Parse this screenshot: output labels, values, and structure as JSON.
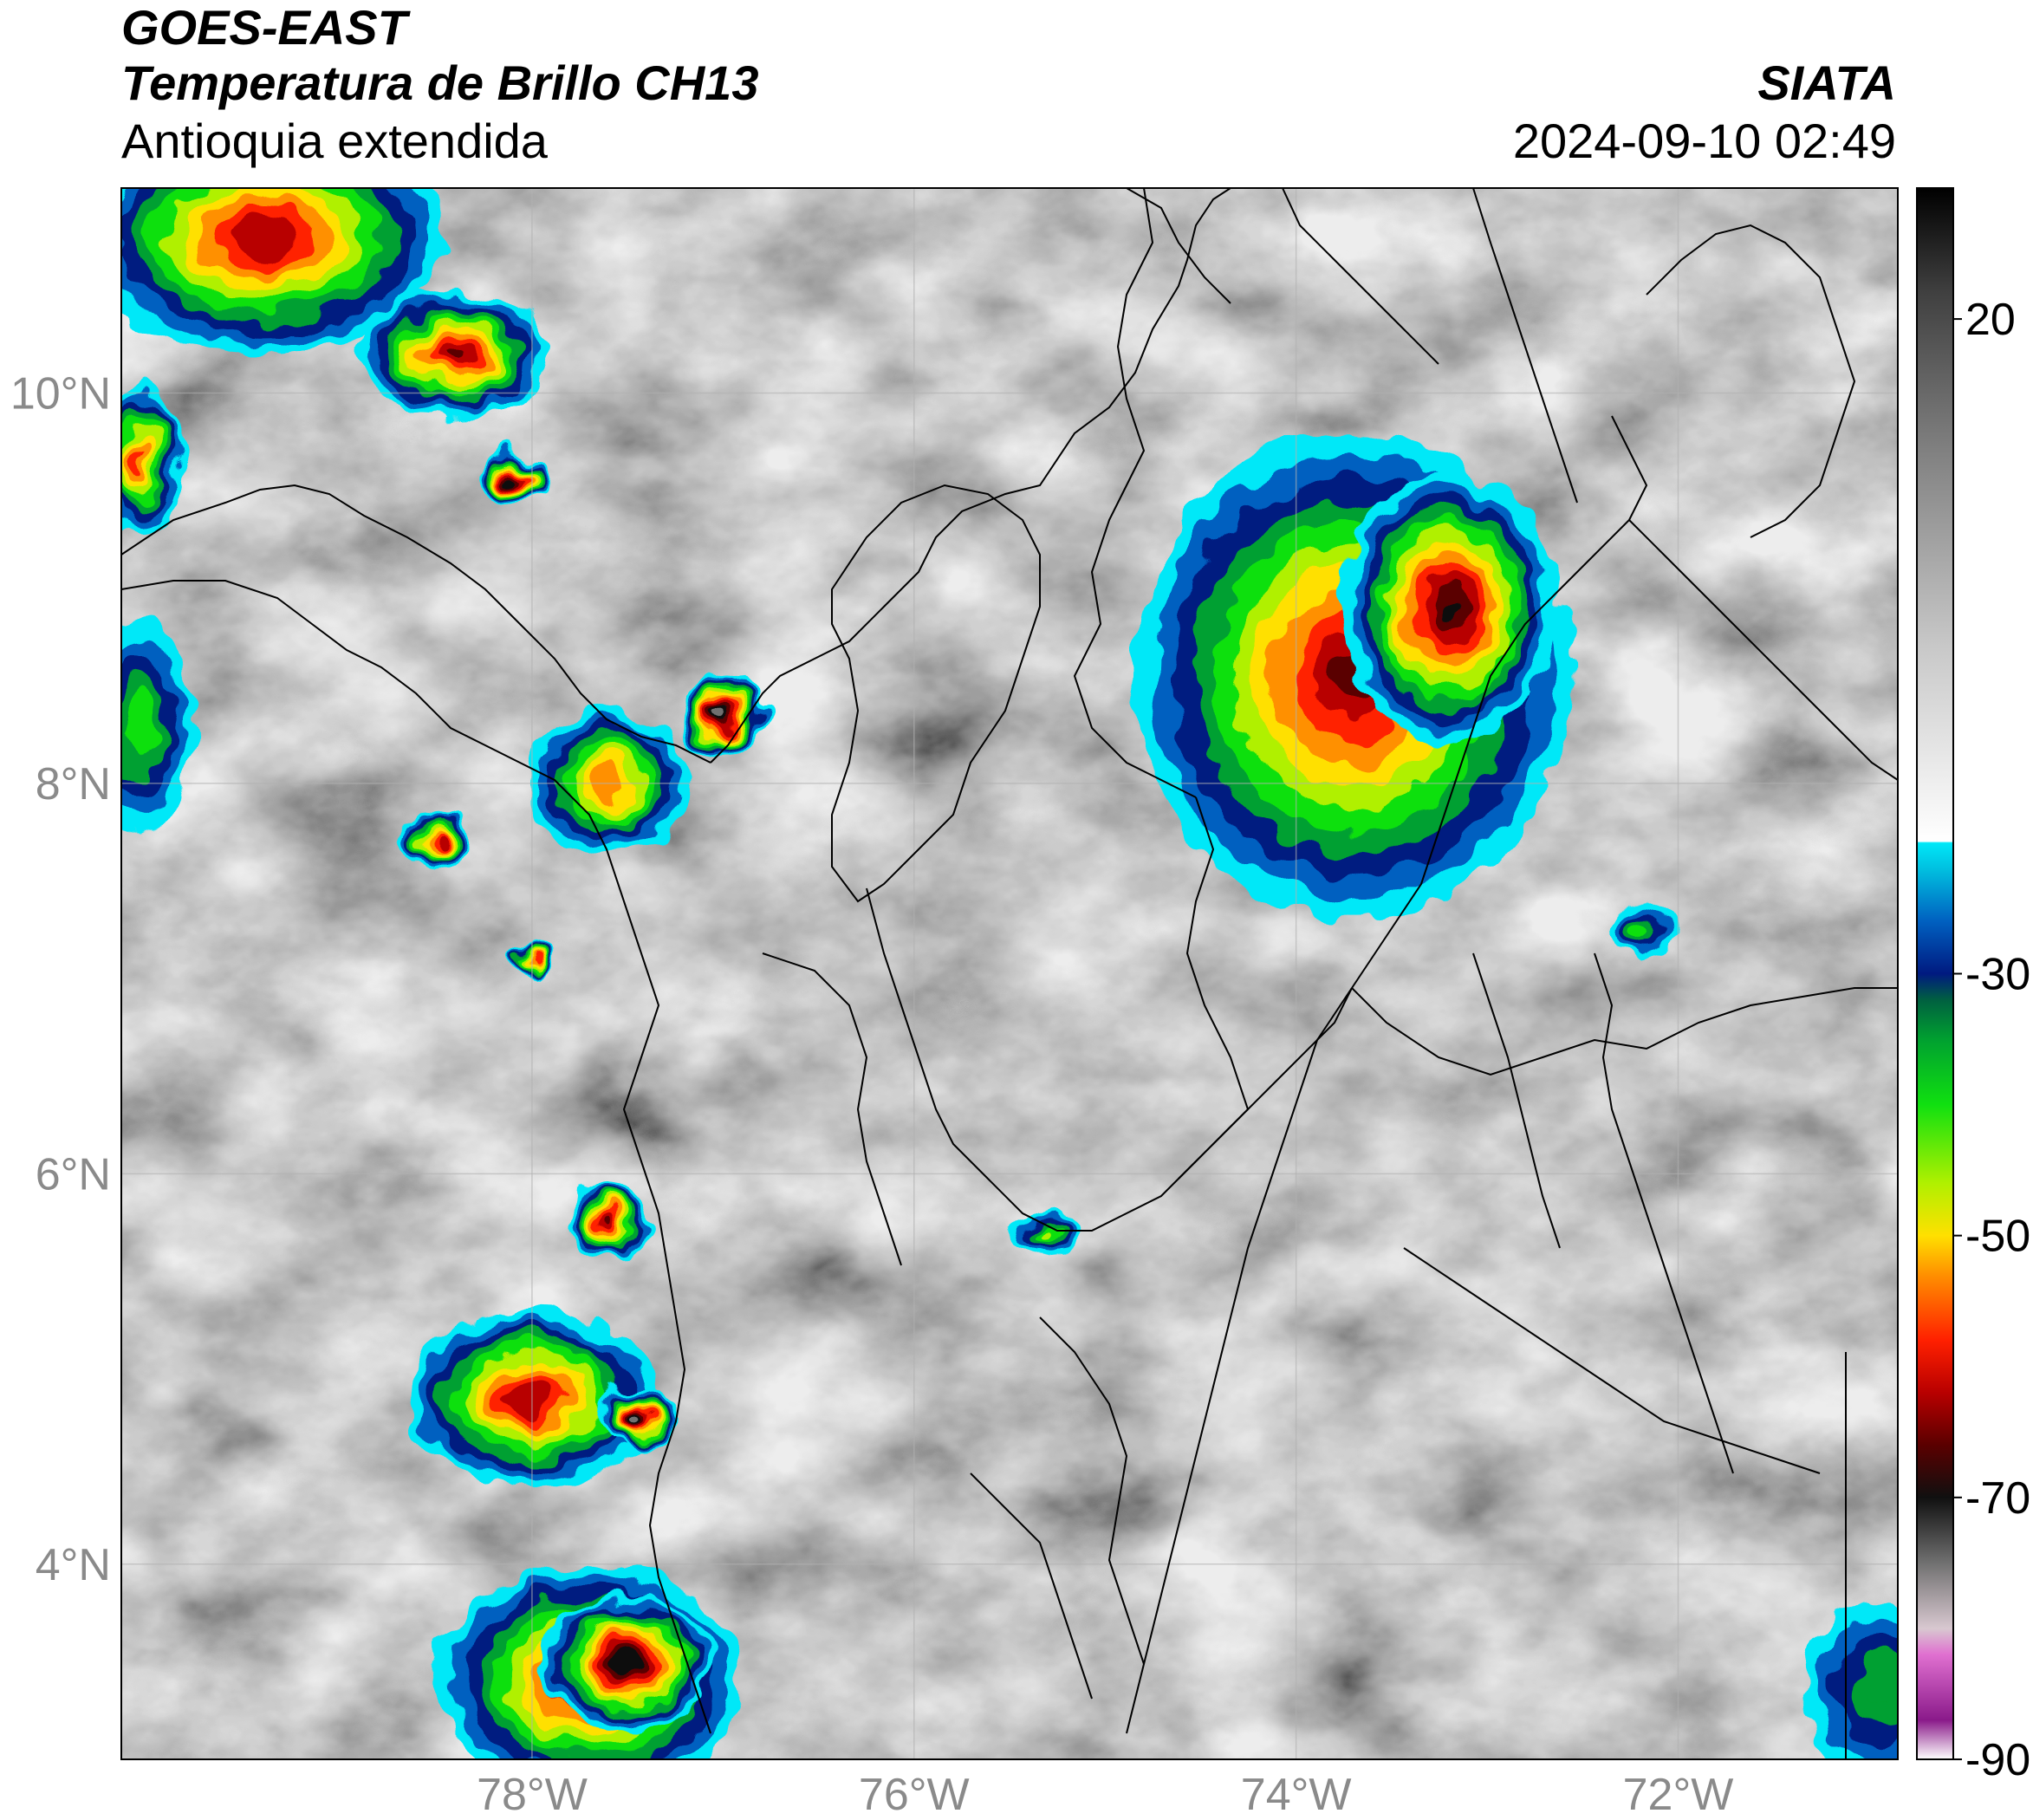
{
  "header": {
    "satellite": "GOES-EAST",
    "product": "Temperatura de Brillo CH13",
    "region": "Antioquia extendida",
    "source": "SIATA",
    "datetime": "2024-09-10 02:49"
  },
  "map": {
    "extent": {
      "lon": [
        -80.15,
        -70.85
      ],
      "lat": [
        3.0,
        11.05
      ]
    },
    "lat_ticks": [
      {
        "v": 10,
        "label": "10°N"
      },
      {
        "v": 8,
        "label": "8°N"
      },
      {
        "v": 6,
        "label": "6°N"
      },
      {
        "v": 4,
        "label": "4°N"
      }
    ],
    "lon_ticks": [
      {
        "v": -78,
        "label": "78°W"
      },
      {
        "v": -76,
        "label": "76°W"
      },
      {
        "v": -74,
        "label": "74°W"
      },
      {
        "v": -72,
        "label": "72°W"
      }
    ],
    "gridlines": true
  },
  "colorbar": {
    "range": [
      -90,
      30
    ],
    "ticks": [
      {
        "v": 20,
        "label": "20"
      },
      {
        "v": -30,
        "label": "-30"
      },
      {
        "v": -50,
        "label": "-50"
      },
      {
        "v": -70,
        "label": "-70"
      },
      {
        "v": -90,
        "label": "-90"
      }
    ],
    "stops": [
      {
        "v": -90,
        "c": "#ffffff"
      },
      {
        "v": -87,
        "c": "#8a1a8a"
      },
      {
        "v": -82,
        "c": "#e070d0"
      },
      {
        "v": -80,
        "c": "#d8c8d0"
      },
      {
        "v": -75,
        "c": "#707070"
      },
      {
        "v": -70,
        "c": "#101010"
      },
      {
        "v": -66,
        "c": "#5a0000"
      },
      {
        "v": -62,
        "c": "#b80000"
      },
      {
        "v": -58,
        "c": "#ff2000"
      },
      {
        "v": -53,
        "c": "#ff9000"
      },
      {
        "v": -50,
        "c": "#ffe000"
      },
      {
        "v": -46,
        "c": "#b0f000"
      },
      {
        "v": -40,
        "c": "#10e010"
      },
      {
        "v": -35,
        "c": "#00a030"
      },
      {
        "v": -32,
        "c": "#006040"
      },
      {
        "v": -30,
        "c": "#001a80"
      },
      {
        "v": -26,
        "c": "#0060c0"
      },
      {
        "v": -22,
        "c": "#00c0e0"
      },
      {
        "v": -20,
        "c": "#00e8f8"
      },
      {
        "v": -19.9,
        "c": "#ffffff"
      },
      {
        "v": -5,
        "c": "#c8c8c8"
      },
      {
        "v": 10,
        "c": "#808080"
      },
      {
        "v": 22,
        "c": "#404040"
      },
      {
        "v": 30,
        "c": "#000000"
      }
    ]
  },
  "storms": [
    {
      "name": "storm-nw-corner",
      "lon": -79.4,
      "lat": 10.8,
      "rx": 0.95,
      "ry": 0.6,
      "core": -64
    },
    {
      "name": "storm-gulf-darien-north",
      "lon": -78.4,
      "lat": 10.2,
      "rx": 0.5,
      "ry": 0.32,
      "core": -66
    },
    {
      "name": "storm-panama-small",
      "lon": -78.1,
      "lat": 9.55,
      "rx": 0.18,
      "ry": 0.14,
      "core": -72
    },
    {
      "name": "storm-west-edge-1",
      "lon": -80.05,
      "lat": 9.65,
      "rx": 0.22,
      "ry": 0.4,
      "core": -58
    },
    {
      "name": "storm-west-edge-2",
      "lon": -80.05,
      "lat": 8.3,
      "rx": 0.28,
      "ry": 0.55,
      "core": -42
    },
    {
      "name": "storm-uraba",
      "lon": -77.6,
      "lat": 8.0,
      "rx": 0.42,
      "ry": 0.38,
      "core": -55
    },
    {
      "name": "storm-uraba-core",
      "lon": -77.0,
      "lat": 8.35,
      "rx": 0.23,
      "ry": 0.2,
      "core": -76
    },
    {
      "name": "storm-west-small",
      "lon": -78.5,
      "lat": 7.7,
      "rx": 0.18,
      "ry": 0.14,
      "core": -64
    },
    {
      "name": "storm-choco-small",
      "lon": -78.0,
      "lat": 7.1,
      "rx": 0.1,
      "ry": 0.08,
      "core": -60
    },
    {
      "name": "storm-magdalena-mcs",
      "lon": -73.7,
      "lat": 8.55,
      "rx": 1.15,
      "ry": 1.25,
      "core": -66
    },
    {
      "name": "storm-magdalena-core",
      "lon": -73.2,
      "lat": 8.9,
      "rx": 0.55,
      "ry": 0.7,
      "core": -70
    },
    {
      "name": "storm-pacific-1",
      "lon": -77.6,
      "lat": 5.75,
      "rx": 0.22,
      "ry": 0.2,
      "core": -66
    },
    {
      "name": "storm-pacific-2",
      "lon": -78.0,
      "lat": 4.85,
      "rx": 0.65,
      "ry": 0.45,
      "core": -64
    },
    {
      "name": "storm-pacific-2-core",
      "lon": -77.45,
      "lat": 4.75,
      "rx": 0.22,
      "ry": 0.16,
      "core": -76
    },
    {
      "name": "storm-pacific-3",
      "lon": -77.7,
      "lat": 3.4,
      "rx": 0.8,
      "ry": 0.6,
      "core": -66
    },
    {
      "name": "storm-pacific-3-core",
      "lon": -77.5,
      "lat": 3.5,
      "rx": 0.45,
      "ry": 0.35,
      "core": -72
    },
    {
      "name": "storm-antioquia-small",
      "lon": -75.3,
      "lat": 5.7,
      "rx": 0.2,
      "ry": 0.1,
      "core": -46
    },
    {
      "name": "storm-santander-small",
      "lon": -72.2,
      "lat": 7.25,
      "rx": 0.18,
      "ry": 0.14,
      "core": -44
    },
    {
      "name": "storm-se-corner",
      "lon": -70.95,
      "lat": 3.35,
      "rx": 0.4,
      "ry": 0.45,
      "core": -36
    }
  ]
}
